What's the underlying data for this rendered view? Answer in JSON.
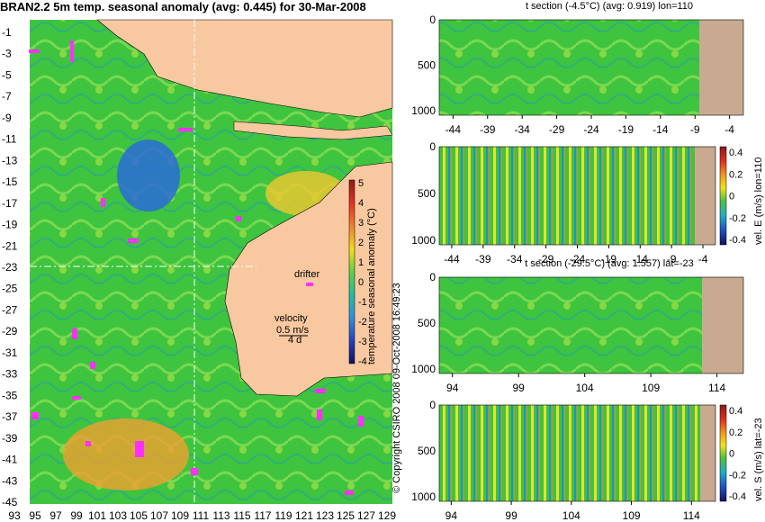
{
  "title": "BRAN2.2 5m temp. seasonal anomaly (avg: 0.445) for 30-Mar-2008",
  "copyright": "© Copyright CSIRO 2008   09-Oct-2008 16:49:23",
  "colors": {
    "ocean_green": "#3ec43e",
    "land": "#f8c8a0",
    "section_land": "#c8aa90",
    "drifter": "#ff30ff"
  },
  "map": {
    "lat_ticks": [
      "-1",
      "-3",
      "-5",
      "-7",
      "-9",
      "-11",
      "-13",
      "-15",
      "-17",
      "-19",
      "-21",
      "-23",
      "-25",
      "-27",
      "-29",
      "-31",
      "-33",
      "-35",
      "-37",
      "-39",
      "-41",
      "-43",
      "-45"
    ],
    "lon_ticks": [
      "93",
      "95",
      "97",
      "99",
      "101",
      "103",
      "105",
      "107",
      "109",
      "111",
      "113",
      "115",
      "117",
      "119",
      "121",
      "123",
      "125",
      "127",
      "129"
    ],
    "drifter_label": "drifter",
    "velocity_label": "velocity",
    "velocity_value": "0.5 m/s",
    "velocity_scale": "4 d",
    "colorbar_label": "temperature seasonal anomaly (°C)",
    "colorbar_ticks": [
      "5",
      "4",
      "3",
      "2",
      "1",
      "0",
      "-1",
      "-2",
      "-3",
      "-4"
    ]
  },
  "chart_data": [
    {
      "type": "heatmap",
      "title": "t section (-4.5°C) (avg: 0.919) lon=110",
      "x_ticks": [
        "-44",
        "-39",
        "-34",
        "-29",
        "-24",
        "-19",
        "-14",
        "-9",
        "-4"
      ],
      "y_ticks": [
        "0",
        "500",
        "1000"
      ],
      "xlim": [
        -46,
        -2
      ],
      "ylim": [
        0,
        1050
      ]
    },
    {
      "type": "heatmap",
      "ylabel": "vel. E (m/s) lon=110",
      "x_ticks": [
        "-44",
        "-39",
        "-34",
        "-29",
        "-24",
        "-19",
        "-14",
        "-9",
        "-4"
      ],
      "y_ticks": [
        "0",
        "500",
        "1000"
      ],
      "colorbar_ticks": [
        "0.4",
        "0.2",
        "0",
        "-0.2",
        "-0.4"
      ],
      "xlim": [
        -46,
        -2
      ],
      "ylim": [
        0,
        1050
      ]
    },
    {
      "type": "heatmap",
      "title": "t section (-29.5°C) (avg: 1.557) lat=-23",
      "x_ticks": [
        "94",
        "99",
        "104",
        "109",
        "114"
      ],
      "y_ticks": [
        "0",
        "500",
        "1000"
      ],
      "xlim": [
        93,
        116
      ],
      "ylim": [
        0,
        1050
      ]
    },
    {
      "type": "heatmap",
      "ylabel": "vel. S (m/s) lat=-23",
      "x_ticks": [
        "94",
        "99",
        "104",
        "109",
        "114"
      ],
      "y_ticks": [
        "0",
        "500",
        "1000"
      ],
      "colorbar_ticks": [
        "0.4",
        "0.2",
        "0",
        "-0.2",
        "-0.4"
      ],
      "xlim": [
        93,
        116
      ],
      "ylim": [
        0,
        1050
      ]
    }
  ]
}
